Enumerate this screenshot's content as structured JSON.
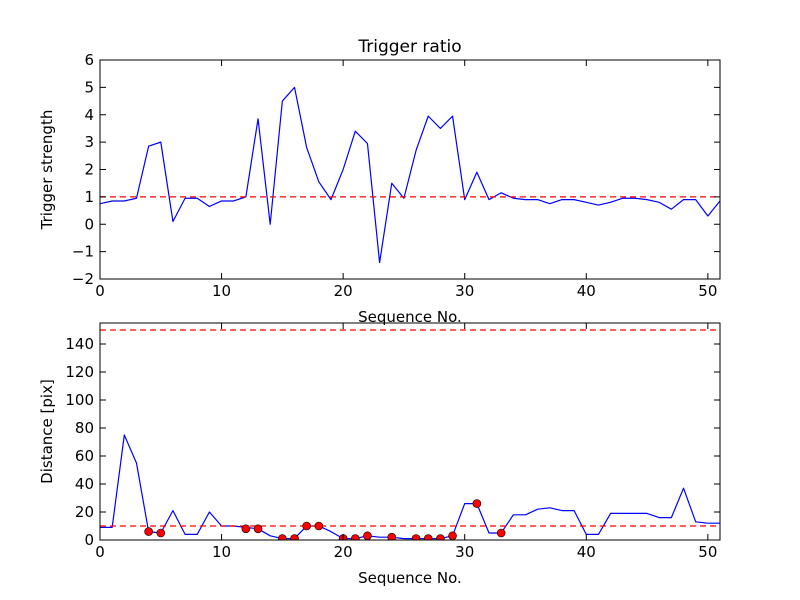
{
  "chart_data": [
    {
      "type": "line",
      "title": "Trigger ratio",
      "xlabel": "Sequence No.",
      "ylabel": "Trigger strength",
      "xlim": [
        0,
        51
      ],
      "ylim": [
        -2,
        6
      ],
      "xticks": [
        0,
        10,
        20,
        30,
        40,
        50
      ],
      "yticks": [
        -2,
        -1,
        0,
        1,
        2,
        3,
        4,
        5,
        6
      ],
      "ytick_labels": [
        "−2",
        "−1",
        "0",
        "1",
        "2",
        "3",
        "4",
        "5",
        "6"
      ],
      "grid": false,
      "series": [
        {
          "color": "#0000ff",
          "style": "solid",
          "x": [
            0,
            1,
            2,
            3,
            4,
            5,
            6,
            7,
            8,
            9,
            10,
            11,
            12,
            13,
            14,
            15,
            16,
            17,
            18,
            19,
            20,
            21,
            22,
            23,
            24,
            25,
            26,
            27,
            28,
            29,
            30,
            31,
            32,
            33,
            34,
            35,
            36,
            37,
            38,
            39,
            40,
            41,
            42,
            43,
            44,
            45,
            46,
            47,
            48,
            49,
            50,
            51
          ],
          "y": [
            0.75,
            0.85,
            0.85,
            0.95,
            2.85,
            3.0,
            0.1,
            0.95,
            0.95,
            0.65,
            0.85,
            0.85,
            1.0,
            3.85,
            0.0,
            4.5,
            5.0,
            2.8,
            1.55,
            0.9,
            2.0,
            3.4,
            2.95,
            -1.4,
            1.5,
            0.95,
            2.7,
            3.95,
            3.5,
            3.95,
            0.9,
            1.9,
            0.9,
            1.15,
            0.95,
            0.9,
            0.9,
            0.75,
            0.9,
            0.9,
            0.8,
            0.7,
            0.8,
            0.95,
            0.95,
            0.9,
            0.8,
            0.55,
            0.9,
            0.9,
            0.3,
            0.85
          ]
        },
        {
          "color": "#ff0000",
          "style": "dashed",
          "x": [
            0,
            51
          ],
          "y": [
            1,
            1
          ]
        }
      ]
    },
    {
      "type": "line",
      "title": "",
      "xlabel": "Sequence No.",
      "ylabel": "Distance [pix]",
      "xlim": [
        0,
        51
      ],
      "ylim": [
        0,
        155
      ],
      "xticks": [
        0,
        10,
        20,
        30,
        40,
        50
      ],
      "yticks": [
        0,
        20,
        40,
        60,
        80,
        100,
        120,
        140
      ],
      "ytick_labels": [
        "0",
        "20",
        "40",
        "60",
        "80",
        "100",
        "120",
        "140"
      ],
      "grid": false,
      "series": [
        {
          "color": "#0000ff",
          "style": "solid",
          "x": [
            0,
            1,
            2,
            3,
            4,
            5,
            6,
            7,
            8,
            9,
            10,
            11,
            12,
            13,
            14,
            15,
            16,
            17,
            18,
            19,
            20,
            21,
            22,
            23,
            24,
            25,
            26,
            27,
            28,
            29,
            30,
            31,
            32,
            33,
            34,
            35,
            36,
            37,
            38,
            39,
            40,
            41,
            42,
            43,
            44,
            45,
            46,
            47,
            48,
            49,
            50,
            51
          ],
          "y": [
            9,
            9,
            75,
            55,
            6,
            5,
            21,
            4,
            4,
            20,
            10,
            10,
            9,
            8,
            3,
            1,
            1,
            10,
            10,
            6,
            1,
            1,
            3,
            2,
            2,
            1,
            1,
            1,
            1,
            3,
            26,
            26,
            5,
            5,
            18,
            18,
            22,
            23,
            21,
            21,
            4,
            4,
            19,
            19,
            19,
            19,
            16,
            16,
            37,
            13,
            12,
            12
          ]
        },
        {
          "color": "#ff0000",
          "style": "dashed",
          "x": [
            0,
            51
          ],
          "y": [
            10,
            10
          ]
        },
        {
          "color": "#ff0000",
          "style": "dashed",
          "x": [
            0,
            51
          ],
          "y": [
            150,
            150
          ]
        },
        {
          "color": "#ff0000",
          "style": "markers",
          "x": [
            4,
            5,
            12,
            13,
            15,
            16,
            17,
            18,
            20,
            21,
            22,
            24,
            26,
            27,
            28,
            29,
            31,
            33
          ],
          "y": [
            6,
            5,
            8,
            8,
            1,
            1,
            10,
            10,
            1,
            1,
            3,
            2,
            1,
            1,
            1,
            3,
            26,
            5
          ]
        }
      ]
    }
  ]
}
